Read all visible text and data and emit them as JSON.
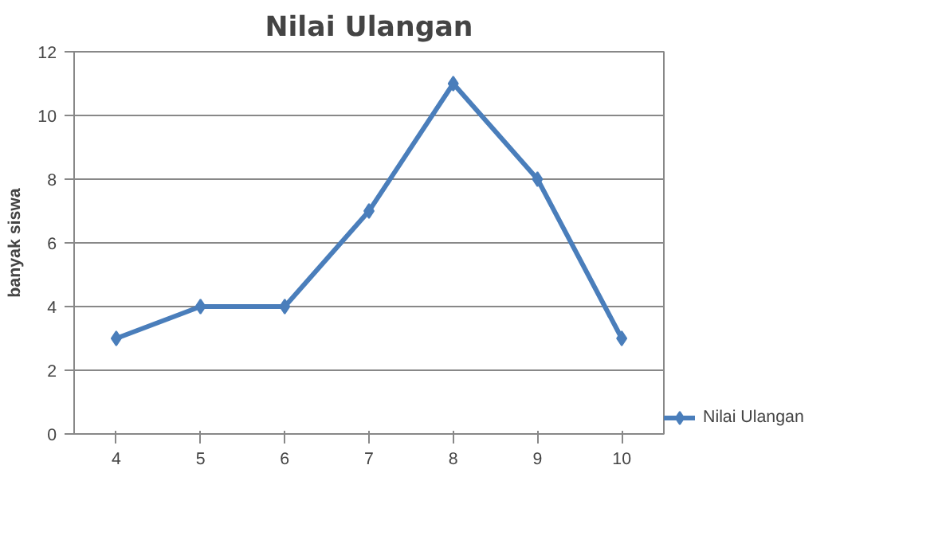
{
  "chart_data": {
    "type": "line",
    "title": "Nilai Ulangan",
    "ylabel": "banyak siswa",
    "categories": [
      "4",
      "5",
      "6",
      "7",
      "8",
      "9",
      "10"
    ],
    "series": [
      {
        "name": "Nilai Ulangan",
        "color": "#4a7ebb",
        "values": [
          3,
          4,
          4,
          7,
          11,
          8,
          3
        ]
      }
    ],
    "ylim": [
      0,
      12
    ],
    "yticks": [
      0,
      2,
      4,
      6,
      8,
      10,
      12
    ],
    "grid": "y",
    "legend": "bottom right",
    "marker": "diamond",
    "line_style": "solid"
  }
}
